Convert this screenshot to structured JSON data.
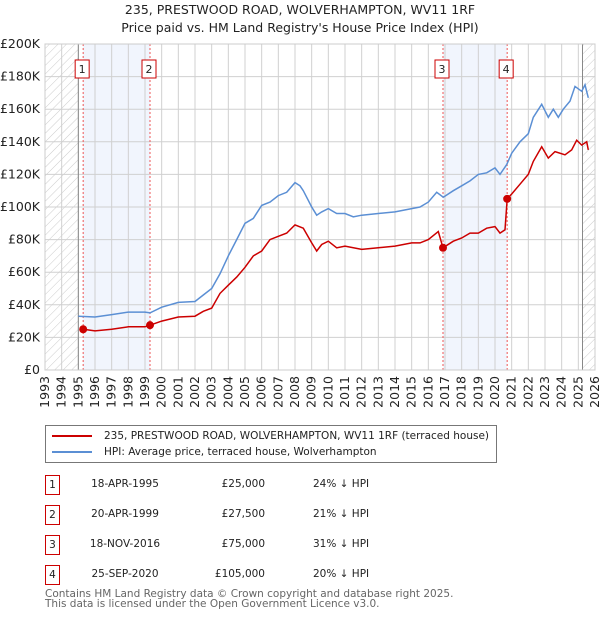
{
  "chart_data": {
    "type": "line",
    "title": "235, PRESTWOOD ROAD, WOLVERHAMPTON, WV11 1RF",
    "subtitle": "Price paid vs. HM Land Registry's House Price Index (HPI)",
    "xlim": [
      1993,
      2026
    ],
    "ylim": [
      0,
      200000
    ],
    "x_ticks": [
      "1993",
      "1994",
      "1995",
      "1996",
      "1997",
      "1998",
      "1999",
      "2000",
      "2001",
      "2002",
      "2003",
      "2004",
      "2005",
      "2006",
      "2007",
      "2008",
      "2009",
      "2010",
      "2011",
      "2012",
      "2013",
      "2014",
      "2015",
      "2016",
      "2017",
      "2018",
      "2019",
      "2020",
      "2021",
      "2022",
      "2023",
      "2024",
      "2025",
      "2026"
    ],
    "y_ticks": [
      {
        "v": 0,
        "label": "£0"
      },
      {
        "v": 20000,
        "label": "£20K"
      },
      {
        "v": 40000,
        "label": "£40K"
      },
      {
        "v": 60000,
        "label": "£60K"
      },
      {
        "v": 80000,
        "label": "£80K"
      },
      {
        "v": 100000,
        "label": "£100K"
      },
      {
        "v": 120000,
        "label": "£120K"
      },
      {
        "v": 140000,
        "label": "£140K"
      },
      {
        "v": 160000,
        "label": "£160K"
      },
      {
        "v": 180000,
        "label": "£180K"
      },
      {
        "v": 200000,
        "label": "£200K"
      }
    ],
    "grid": true,
    "hatched_ranges": [
      [
        1993,
        1995
      ],
      [
        2025.25,
        2026
      ]
    ],
    "shaded_ranges": [
      [
        1995.29,
        1999.3
      ],
      [
        2016.88,
        2020.73
      ]
    ],
    "series": [
      {
        "name": "235, PRESTWOOD ROAD, WOLVERHAMPTON, WV11 1RF (terraced house)",
        "color": "#cc0000",
        "x": [
          1995.29,
          1996,
          1997,
          1998,
          1999,
          1999.3,
          2000,
          2001,
          2002,
          2002.5,
          2003,
          2003.5,
          2004,
          2004.5,
          2005,
          2005.5,
          2006,
          2006.5,
          2007,
          2007.5,
          2008,
          2008.5,
          2009,
          2009.3,
          2009.6,
          2010,
          2010.5,
          2011,
          2012,
          2013,
          2014,
          2015,
          2015.5,
          2016,
          2016.6,
          2016.88,
          2017.5,
          2018,
          2018.5,
          2019,
          2019.5,
          2020,
          2020.3,
          2020.6,
          2020.73,
          2021,
          2021.5,
          2022,
          2022.3,
          2022.8,
          2023.2,
          2023.6,
          2024.2,
          2024.6,
          2024.9,
          2025.2,
          2025.5,
          2025.6
        ],
        "y": [
          25000,
          24000,
          25000,
          26500,
          26500,
          27500,
          30000,
          32500,
          33000,
          36000,
          38000,
          47000,
          52000,
          57000,
          63000,
          70000,
          73000,
          80000,
          82000,
          84000,
          89000,
          87000,
          78000,
          73000,
          77000,
          79000,
          75000,
          76000,
          74000,
          75000,
          76000,
          78000,
          78000,
          80000,
          85000,
          75000,
          79000,
          81000,
          84000,
          84000,
          87000,
          88000,
          84000,
          86000,
          105000,
          108000,
          114000,
          120000,
          128000,
          137000,
          130000,
          134000,
          132000,
          135000,
          141000,
          138000,
          140000,
          135000
        ]
      },
      {
        "name": "HPI: Average price, terraced house, Wolverhampton",
        "color": "#5b8fd4",
        "x": [
          1995,
          1996,
          1997,
          1998,
          1999,
          1999.3,
          2000,
          2001,
          2002,
          2002.5,
          2003,
          2003.5,
          2004,
          2004.5,
          2005,
          2005.5,
          2006,
          2006.5,
          2007,
          2007.5,
          2008,
          2008.3,
          2008.5,
          2009,
          2009.3,
          2009.6,
          2010,
          2010.5,
          2011,
          2011.5,
          2012,
          2013,
          2014,
          2015,
          2015.5,
          2016,
          2016.5,
          2016.9,
          2017.5,
          2018,
          2018.5,
          2019,
          2019.5,
          2020,
          2020.3,
          2020.7,
          2021,
          2021.5,
          2022,
          2022.3,
          2022.8,
          2023.2,
          2023.5,
          2023.8,
          2024.1,
          2024.5,
          2024.8,
          2025.2,
          2025.4,
          2025.6
        ],
        "y": [
          33000,
          32500,
          34000,
          35500,
          35500,
          35000,
          38500,
          41500,
          42000,
          46000,
          50000,
          59000,
          70000,
          80000,
          90000,
          93000,
          101000,
          103000,
          107000,
          109000,
          115000,
          113000,
          110000,
          100000,
          95000,
          97000,
          99000,
          96000,
          96000,
          94000,
          95000,
          96000,
          97000,
          99000,
          100000,
          103000,
          109000,
          106000,
          110000,
          113000,
          116000,
          120000,
          121000,
          124000,
          120000,
          126000,
          133000,
          140000,
          145000,
          155000,
          163000,
          155000,
          160000,
          155000,
          160000,
          165000,
          174000,
          171000,
          175000,
          167000
        ]
      }
    ],
    "sales": [
      {
        "num": "1",
        "x": 1995.29,
        "y": 25000
      },
      {
        "num": "2",
        "x": 1999.3,
        "y": 27500
      },
      {
        "num": "3",
        "x": 2016.88,
        "y": 75000
      },
      {
        "num": "4",
        "x": 2020.73,
        "y": 105000
      }
    ],
    "legend_placement": "below"
  },
  "table": [
    {
      "num": "1",
      "date": "18-APR-1995",
      "price": "£25,000",
      "hpi": "24% ↓ HPI"
    },
    {
      "num": "2",
      "date": "20-APR-1999",
      "price": "£27,500",
      "hpi": "21% ↓ HPI"
    },
    {
      "num": "3",
      "date": "18-NOV-2016",
      "price": "£75,000",
      "hpi": "31% ↓ HPI"
    },
    {
      "num": "4",
      "date": "25-SEP-2020",
      "price": "£105,000",
      "hpi": "20% ↓ HPI"
    }
  ],
  "footer": {
    "line1": "Contains HM Land Registry data © Crown copyright and database right 2025.",
    "line2": "This data is licensed under the Open Government Licence v3.0."
  }
}
